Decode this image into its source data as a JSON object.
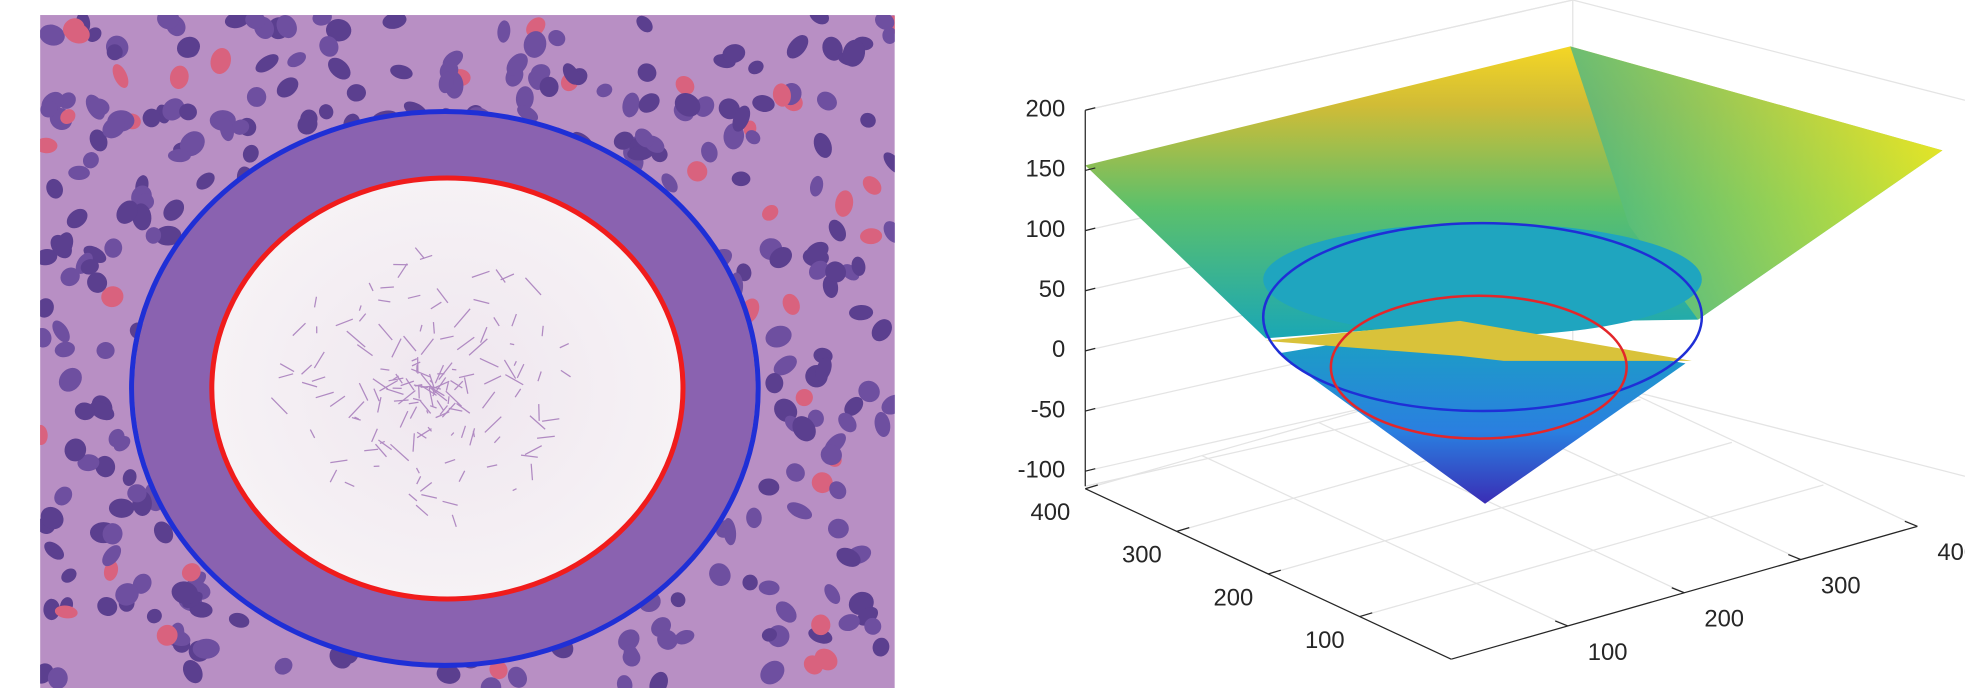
{
  "chart_data": {
    "type": "surface3d",
    "zlim": [
      -100,
      200
    ],
    "zticks": [
      -100,
      -50,
      0,
      50,
      100,
      150,
      200
    ],
    "xlim": [
      0,
      400
    ],
    "xticks": [
      100,
      200,
      300,
      400
    ],
    "ylim": [
      0,
      400
    ],
    "yticks": [
      100,
      200,
      300,
      400
    ],
    "contours": [
      {
        "color": "#1f2fd6"
      },
      {
        "color": "#e3262a"
      }
    ],
    "grid": true
  }
}
